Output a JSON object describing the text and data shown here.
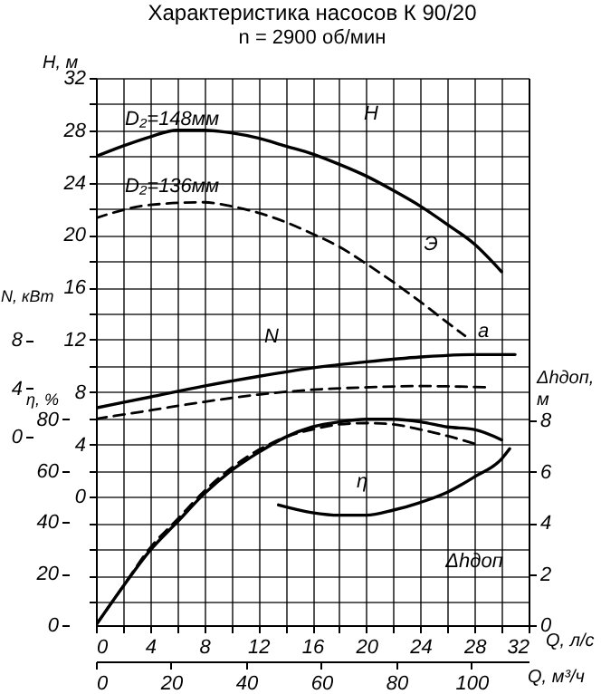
{
  "chart_data": [
    {
      "type": "line",
      "title": "Характеристика насосов К 90/20",
      "subtitle": "n = 2900 об/мин",
      "xlabel": "Q, л/с",
      "x2label": "Q, м³/ч",
      "ylabel": "H, м",
      "y2label": "N, кВт",
      "y3label": "η, %",
      "grid": true,
      "xlim": [
        0,
        32
      ],
      "xticks": [
        0,
        {
          "value": 2,
          "label": null
        },
        4,
        {
          "value": 6,
          "label": null
        },
        8,
        {
          "value": 10,
          "label": null
        },
        12,
        {
          "value": 14,
          "label": null
        },
        16,
        {
          "value": 18,
          "label": null
        },
        20,
        {
          "value": 22,
          "label": null
        },
        24,
        {
          "value": 26,
          "label": null
        },
        28,
        {
          "value": 30,
          "label": null
        },
        32
      ],
      "x2lim": [
        0,
        115.2
      ],
      "x2ticks": [
        0,
        20,
        40,
        60,
        80,
        100
      ],
      "ylim": [
        -9.8,
        32
      ],
      "yticks": [
        {
          "value": -8,
          "label": null
        },
        {
          "value": -6,
          "label": null
        },
        {
          "value": -4,
          "label": null
        },
        {
          "value": -2,
          "label": null
        },
        0,
        {
          "value": 2,
          "label": null
        },
        4,
        {
          "value": 6,
          "label": null
        },
        8,
        {
          "value": 10,
          "label": null
        },
        12,
        {
          "value": 14,
          "label": null
        },
        16,
        {
          "value": 18,
          "label": null
        },
        20,
        {
          "value": 22,
          "label": null
        },
        24,
        {
          "value": 26,
          "label": null
        },
        28,
        {
          "value": 30,
          "label": null
        },
        32
      ],
      "y2lim": [
        -15.5,
        29.6
      ],
      "y2ticks": [
        0,
        4,
        8
      ],
      "y3lim": [
        0,
        212.6
      ],
      "y3ticks": [
        0,
        20,
        40,
        60,
        80
      ],
      "series": [
        {
          "color": "#000000",
          "line_style": "solid",
          "x": [
            0,
            2,
            4,
            6,
            8,
            10,
            12,
            14,
            16,
            18,
            20,
            22,
            24,
            26,
            28,
            30
          ],
          "values": [
            26,
            26.8,
            27.5,
            28,
            28,
            27.8,
            27.4,
            26.8,
            26.2,
            25.4,
            24.5,
            23.4,
            22.2,
            20.8,
            19.3,
            17.2
          ]
        },
        {
          "color": "#000000",
          "line_style": "dashed",
          "x": [
            0,
            4,
            8,
            10,
            12,
            14,
            16,
            18,
            20,
            22,
            24,
            26,
            27.3
          ],
          "values": [
            21.3,
            22.3,
            22.5,
            22.2,
            21.7,
            21,
            20.1,
            19.1,
            17.8,
            16.4,
            14.9,
            13.3,
            12.3
          ]
        },
        {
          "color": "#000000",
          "line_style": "solid",
          "axis": "y2",
          "x": [
            0,
            4,
            8,
            12,
            16,
            20,
            24,
            28,
            31
          ],
          "values": [
            2.4,
            3.3,
            4.2,
            5,
            5.7,
            6.2,
            6.6,
            6.8,
            6.8
          ]
        },
        {
          "color": "#000000",
          "line_style": "dashed",
          "axis": "y2",
          "x": [
            0,
            4,
            8,
            12,
            16,
            20,
            24,
            29
          ],
          "values": [
            1.5,
            2.2,
            2.9,
            3.5,
            3.9,
            4.1,
            4.2,
            4.1
          ]
        },
        {
          "color": "#000000",
          "line_style": "solid",
          "axis": "y3",
          "x": [
            0,
            2,
            4,
            6,
            8,
            10,
            12,
            14,
            16,
            18,
            20,
            22,
            24,
            26,
            28,
            30
          ],
          "values": [
            0,
            15,
            29,
            40,
            51,
            60,
            67,
            73,
            77,
            79,
            80,
            80,
            79,
            77,
            76,
            72
          ]
        },
        {
          "color": "#000000",
          "line_style": "dashed",
          "axis": "y3",
          "x": [
            0,
            2,
            4,
            6,
            8,
            10,
            12,
            14,
            16,
            18,
            20,
            22,
            24,
            26,
            28
          ],
          "values": [
            0,
            15,
            30,
            41,
            52,
            61,
            68,
            73,
            76,
            78,
            78.5,
            78,
            76,
            73.5,
            70.5
          ]
        }
      ],
      "annotations": [
        "D₂=148мм",
        "D₂=136мм",
        "H",
        "Э",
        "a",
        "N",
        "η",
        "Δhдоп"
      ]
    },
    {
      "type": "line",
      "ylabel": "Δhдоп, м",
      "tick_labels": "y",
      "xlim": [
        0,
        32
      ],
      "ylim": [
        0,
        21.4
      ],
      "yticks": [
        0,
        2,
        4,
        6,
        8
      ],
      "series": [
        {
          "color": "#000000",
          "line_style": "solid",
          "x": [
            13.5,
            16,
            18,
            20,
            22,
            24,
            26,
            28,
            30,
            30.6
          ],
          "values": [
            4.7,
            4.4,
            4.3,
            4.3,
            4.5,
            4.8,
            5.2,
            5.8,
            6.5,
            6.9
          ]
        }
      ]
    }
  ]
}
